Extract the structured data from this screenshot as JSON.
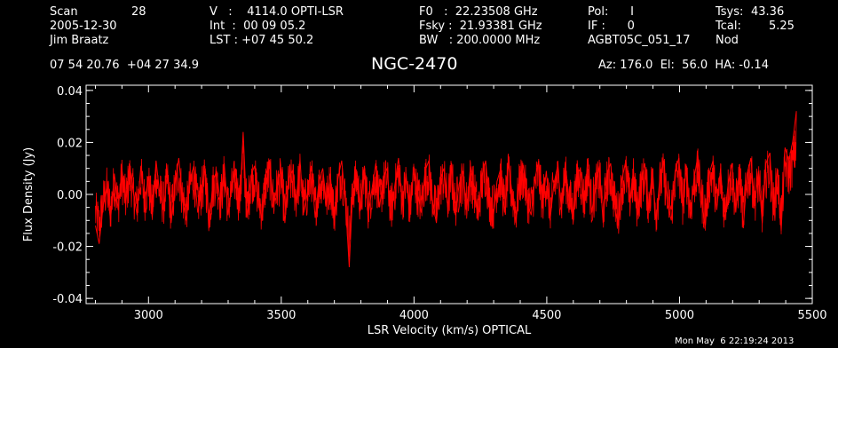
{
  "header": {
    "scan_label": "Scan",
    "scan_value": "28",
    "date": "2005-12-30",
    "observer": "Jim Braatz",
    "v_line": "V   :    4114.0 OPTI-LSR",
    "int_line": "Int  :  00 09 05.2",
    "lst_line": "LST : +07 45 50.2",
    "f0_line": "F0   :  22.23508 GHz",
    "fsky_line": "Fsky :  21.93381 GHz",
    "bw_line": "BW   : 200.0000 MHz",
    "pol_line": "Pol:      I",
    "if_line": "IF :      0",
    "proj_line": "AGBT05C_051_17",
    "tsys_label": "Tsys:",
    "tsys_value": "43.36",
    "tcal_label": "Tcal:",
    "tcal_value": "5.25",
    "mode": "Nod",
    "coords": "07 54 20.76  +04 27 34.9",
    "azelha": "Az: 176.0  El:  56.0  HA: -0.14"
  },
  "timestamp": "Mon May  6 22:19:24 2013",
  "colors": {
    "background": "#000000",
    "axes": "#ffffff",
    "series": "#ff0000"
  },
  "chart_data": {
    "type": "line",
    "title": "NGC-2470",
    "xlabel": "LSR Velocity (km/s) OPTICAL",
    "ylabel": "Flux Density (Jy)",
    "xlim": [
      2765,
      5500
    ],
    "ylim": [
      -0.042,
      0.042
    ],
    "xticks": [
      3000,
      3500,
      4000,
      4500,
      5000,
      5500
    ],
    "yticks": [
      -0.04,
      -0.02,
      0.0,
      0.02,
      0.04
    ],
    "ytick_labels": [
      "-0.04",
      "-0.02",
      "0.00",
      "0.02",
      "0.04"
    ],
    "series": [
      {
        "x_start": 2800,
        "x_end": 5440,
        "y": [
          -0.012,
          -0.019,
          -0.005,
          0.003,
          -0.01,
          0.008,
          -0.006,
          0.01,
          -0.004,
          0.012,
          0.001,
          -0.008,
          0.011,
          -0.003,
          0.007,
          -0.009,
          0.013,
          0.0,
          -0.006,
          0.009,
          -0.011,
          0.004,
          0.014,
          -0.002,
          -0.01,
          0.006,
          0.011,
          -0.007,
          0.002,
          0.01,
          -0.013,
          0.005,
          0.009,
          -0.004,
          0.012,
          -0.008,
          0.003,
          0.01,
          -0.006,
          0.024,
          -0.009,
          0.007,
          0.011,
          -0.003,
          -0.01,
          0.008,
          0.012,
          -0.005,
          0.004,
          0.01,
          -0.011,
          0.006,
          0.009,
          -0.002,
          0.013,
          -0.007,
          0.001,
          0.011,
          -0.009,
          0.005,
          0.01,
          -0.004,
          0.008,
          -0.012,
          0.006,
          0.013,
          -0.003,
          -0.028,
          0.004,
          0.009,
          -0.006,
          0.011,
          -0.008,
          0.002,
          0.012,
          -0.005,
          0.007,
          0.01,
          -0.01,
          0.003,
          0.014,
          -0.004,
          0.008,
          -0.009,
          0.011,
          0.001,
          -0.007,
          0.009,
          0.013,
          -0.003,
          -0.011,
          0.006,
          0.01,
          -0.005,
          0.012,
          -0.008,
          0.004,
          0.009,
          -0.006,
          0.011,
          0.002,
          -0.01,
          0.007,
          0.013,
          -0.004,
          -0.009,
          0.005,
          0.01,
          -0.007,
          0.012,
          0.0,
          -0.011,
          0.008,
          0.011,
          -0.003,
          -0.008,
          0.006,
          0.013,
          -0.005,
          0.009,
          -0.01,
          0.004,
          0.011,
          -0.006,
          0.012,
          -0.002,
          -0.009,
          0.007,
          0.01,
          -0.004,
          0.014,
          -0.007,
          0.003,
          0.011,
          -0.011,
          0.008,
          0.012,
          -0.005,
          -0.012,
          0.006,
          0.013,
          -0.003,
          0.009,
          -0.008,
          0.005,
          0.012,
          -0.006,
          0.01,
          -0.011,
          0.007,
          0.013,
          -0.004,
          -0.01,
          0.009,
          0.014,
          -0.005,
          0.011,
          -0.009,
          0.006,
          0.015,
          -0.003,
          -0.012,
          0.008,
          0.013,
          -0.006,
          0.01,
          -0.01,
          0.004,
          0.012,
          -0.007,
          0.011,
          -0.013,
          0.008,
          0.014,
          -0.004,
          0.009,
          -0.011,
          0.012,
          0.016,
          -0.008,
          0.01,
          -0.014,
          0.018,
          0.013,
          0.02,
          0.032
        ]
      }
    ]
  }
}
